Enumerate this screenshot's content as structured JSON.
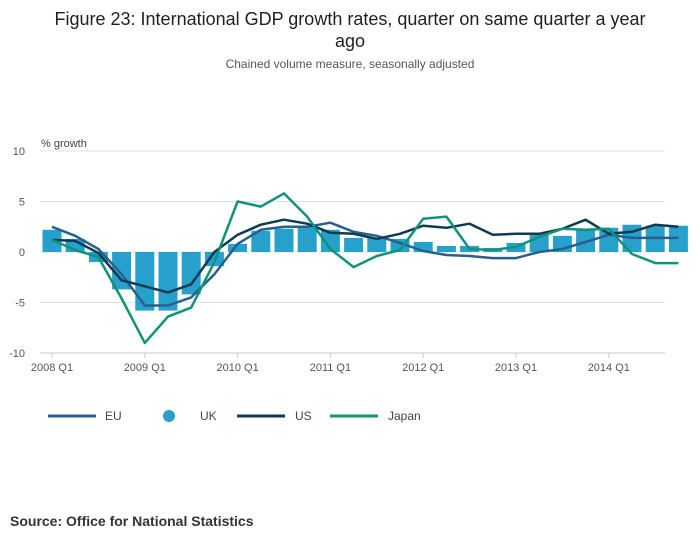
{
  "title": {
    "line1": "Figure 23: International GDP growth rates, quarter on same quarter a year",
    "line2": "ago"
  },
  "subtitle": "Chained volume measure, seasonally adjusted",
  "source": "Source: Office for National Statistics",
  "chart_data": {
    "type": "line",
    "title": "Figure 23: International GDP growth rates, quarter on same quarter a year ago",
    "subtitle": "Chained volume measure, seasonally adjusted",
    "ylabel": "% growth",
    "xlabel": "",
    "ylim": [
      -10,
      10
    ],
    "yticks": [
      10,
      5,
      0,
      -5,
      -10
    ],
    "grid": "horizontal",
    "legend": "bottom",
    "categories": [
      "2008 Q1",
      "2008 Q2",
      "2008 Q3",
      "2008 Q4",
      "2009 Q1",
      "2009 Q2",
      "2009 Q3",
      "2009 Q4",
      "2010 Q1",
      "2010 Q2",
      "2010 Q3",
      "2010 Q4",
      "2011 Q1",
      "2011 Q2",
      "2011 Q3",
      "2011 Q4",
      "2012 Q1",
      "2012 Q2",
      "2012 Q3",
      "2012 Q4",
      "2013 Q1",
      "2013 Q2",
      "2013 Q3",
      "2013 Q4",
      "2014 Q1",
      "2014 Q2",
      "2014 Q3",
      "2014 Q4"
    ],
    "tick_labels": [
      "2008 Q1",
      "2009 Q1",
      "2010 Q1",
      "2011 Q1",
      "2012 Q1",
      "2013 Q1",
      "2014 Q1"
    ],
    "series": [
      {
        "name": "EU",
        "type": "line",
        "color": "#27608f",
        "values": [
          2.5,
          1.6,
          0.3,
          -2.2,
          -5.3,
          -5.3,
          -4.5,
          -2.2,
          0.8,
          2.2,
          2.5,
          2.5,
          2.9,
          2.0,
          1.6,
          0.9,
          0.1,
          -0.3,
          -0.4,
          -0.6,
          -0.6,
          0.0,
          0.3,
          1.0,
          1.7,
          1.4,
          1.4,
          1.4
        ]
      },
      {
        "name": "UK",
        "type": "bar",
        "color": "#27a0cc",
        "values": [
          2.2,
          1.3,
          -1.0,
          -3.7,
          -5.8,
          -5.8,
          -4.2,
          -1.4,
          0.8,
          2.1,
          2.3,
          2.5,
          2.2,
          1.4,
          1.4,
          1.3,
          1.0,
          0.6,
          0.6,
          0.4,
          0.9,
          1.8,
          1.6,
          2.3,
          2.4,
          2.7,
          2.6,
          2.6
        ]
      },
      {
        "name": "US",
        "type": "line",
        "color": "#0f3a52",
        "values": [
          1.2,
          1.1,
          -0.1,
          -2.8,
          -3.4,
          -4.0,
          -3.2,
          0.0,
          1.7,
          2.7,
          3.2,
          2.8,
          1.9,
          1.8,
          1.3,
          1.8,
          2.6,
          2.4,
          2.8,
          1.7,
          1.8,
          1.8,
          2.3,
          3.2,
          1.8,
          2.0,
          2.7,
          2.5
        ]
      },
      {
        "name": "Japan",
        "type": "line",
        "color": "#10937a",
        "values": [
          1.2,
          0.2,
          -0.5,
          -4.6,
          -9.0,
          -6.4,
          -5.5,
          -1.0,
          5.0,
          4.5,
          5.8,
          3.5,
          0.3,
          -1.5,
          -0.4,
          0.2,
          3.3,
          3.5,
          0.3,
          0.2,
          0.5,
          1.5,
          2.3,
          2.2,
          2.3,
          -0.2,
          -1.1,
          -1.1
        ]
      }
    ]
  }
}
